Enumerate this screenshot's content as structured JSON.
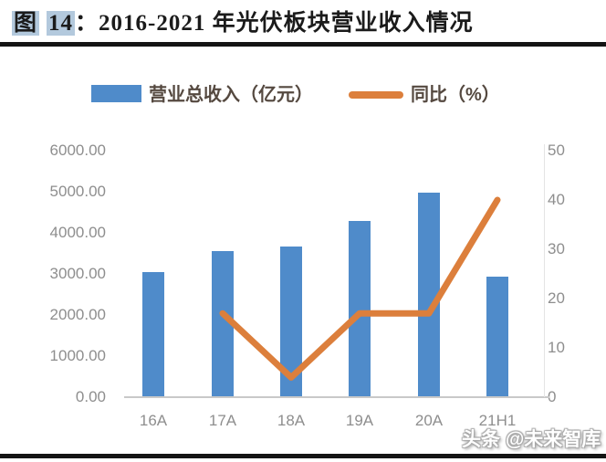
{
  "title": {
    "prefix": "图",
    "number": "14",
    "separator": "：",
    "text": "2016-2021 年光伏板块营业收入情况",
    "full": "图 14：2016-2021 年光伏板块营业收入情况"
  },
  "legend": [
    {
      "label": "营业总收入（亿元）",
      "type": "bar",
      "color": "#4f8bca"
    },
    {
      "label": "同比（%）",
      "type": "line",
      "color": "#dc7f3c"
    }
  ],
  "watermark": "头条 @未来智库",
  "colors": {
    "bar": "#4f8bca",
    "line": "#dc7f3c",
    "axis_text": "#8e8e8e",
    "title_highlight": "#b3c9dd",
    "rule": "#141414",
    "legend_text": "#554940"
  },
  "chart_data": {
    "type": "bar",
    "subtype": "bar+line combo, dual axis",
    "title": "2016-2021 年光伏板块营业收入情况",
    "categories": [
      "16A",
      "17A",
      "18A",
      "19A",
      "20A",
      "21H1"
    ],
    "series": [
      {
        "name": "营业总收入（亿元）",
        "type": "bar",
        "axis": "left",
        "color": "#4f8bca",
        "values": [
          3040,
          3550,
          3660,
          4300,
          4980,
          2930
        ]
      },
      {
        "name": "同比（%）",
        "type": "line",
        "axis": "right",
        "color": "#dc7f3c",
        "values": [
          null,
          17,
          4,
          17,
          17,
          40
        ]
      }
    ],
    "left_axis": {
      "min": 0,
      "max": 6000,
      "ticks": [
        "6000.00",
        "5000.00",
        "4000.00",
        "3000.00",
        "2000.00",
        "1000.00",
        "0.00"
      ]
    },
    "right_axis": {
      "min": 0,
      "max": 50,
      "ticks": [
        "50",
        "40",
        "30",
        "20",
        "10",
        "0"
      ]
    },
    "grid": false,
    "legend_position": "top"
  }
}
